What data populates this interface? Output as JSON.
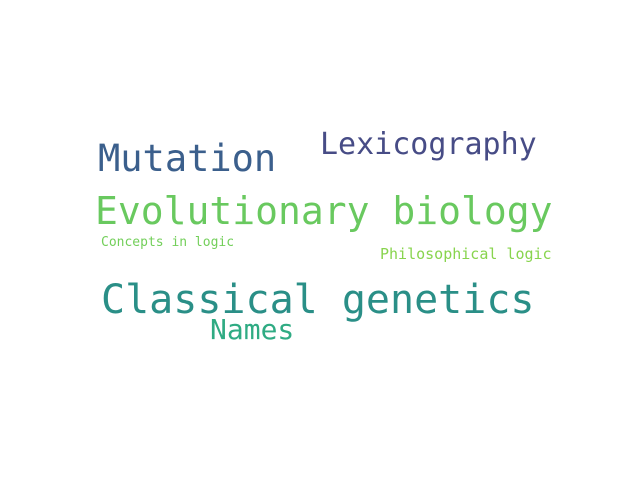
{
  "words": [
    {
      "text": "Mutation",
      "color": "#3b5f8c"
    },
    {
      "text": "Lexicography",
      "color": "#474c86"
    },
    {
      "text": "Evolutionary biology",
      "color": "#69c95f"
    },
    {
      "text": "Concepts in logic",
      "color": "#73cf5a"
    },
    {
      "text": "Philosophical logic",
      "color": "#88d44e"
    },
    {
      "text": "Classical genetics",
      "color": "#2a8f87"
    },
    {
      "text": "Names",
      "color": "#2fab83"
    }
  ]
}
